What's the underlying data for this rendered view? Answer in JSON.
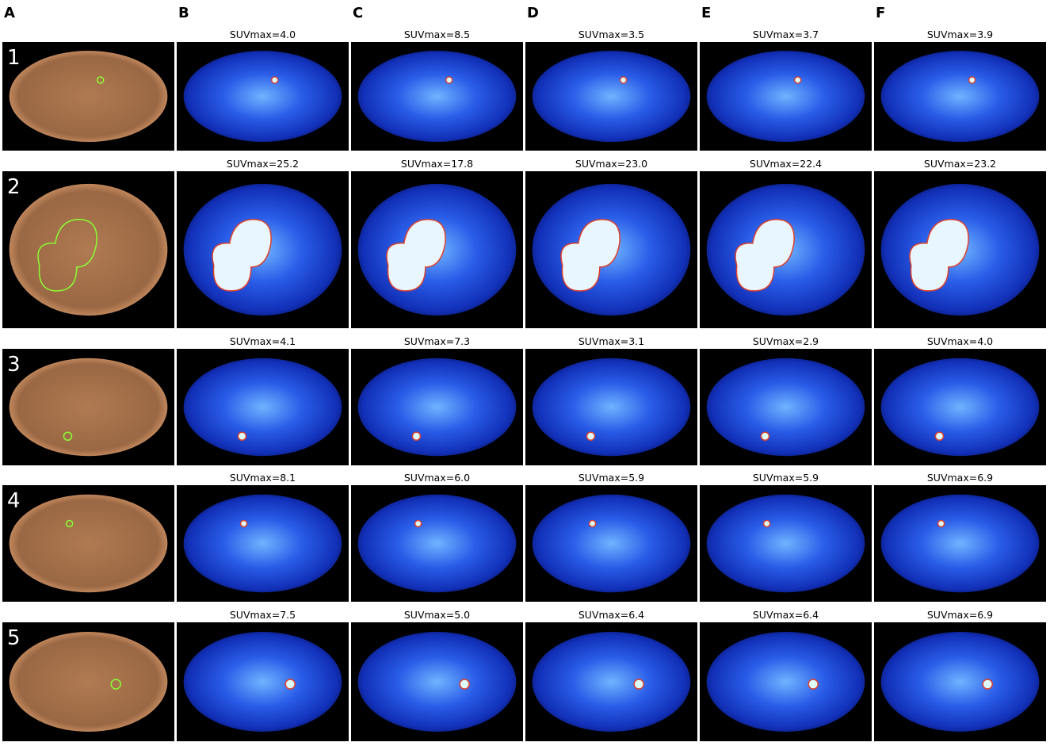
{
  "columns": [
    "A",
    "B",
    "C",
    "D",
    "E",
    "F"
  ],
  "rows": [
    {
      "label": "1",
      "suv": [
        "SUVmax=4.0",
        "SUVmax=8.5",
        "SUVmax=3.5",
        "SUVmax=3.7",
        "SUVmax=3.9"
      ]
    },
    {
      "label": "2",
      "suv": [
        "SUVmax=25.2",
        "SUVmax=17.8",
        "SUVmax=23.0",
        "SUVmax=22.4",
        "SUVmax=23.2"
      ]
    },
    {
      "label": "3",
      "suv": [
        "SUVmax=4.1",
        "SUVmax=7.3",
        "SUVmax=3.1",
        "SUVmax=2.9",
        "SUVmax=4.0"
      ]
    },
    {
      "label": "4",
      "suv": [
        "SUVmax=8.1",
        "SUVmax=6.0",
        "SUVmax=5.9",
        "SUVmax=5.9",
        "SUVmax=6.9"
      ]
    },
    {
      "label": "5",
      "suv": [
        "SUVmax=7.5",
        "SUVmax=5.0",
        "SUVmax=6.4",
        "SUVmax=6.4",
        "SUVmax=6.9"
      ]
    }
  ]
}
